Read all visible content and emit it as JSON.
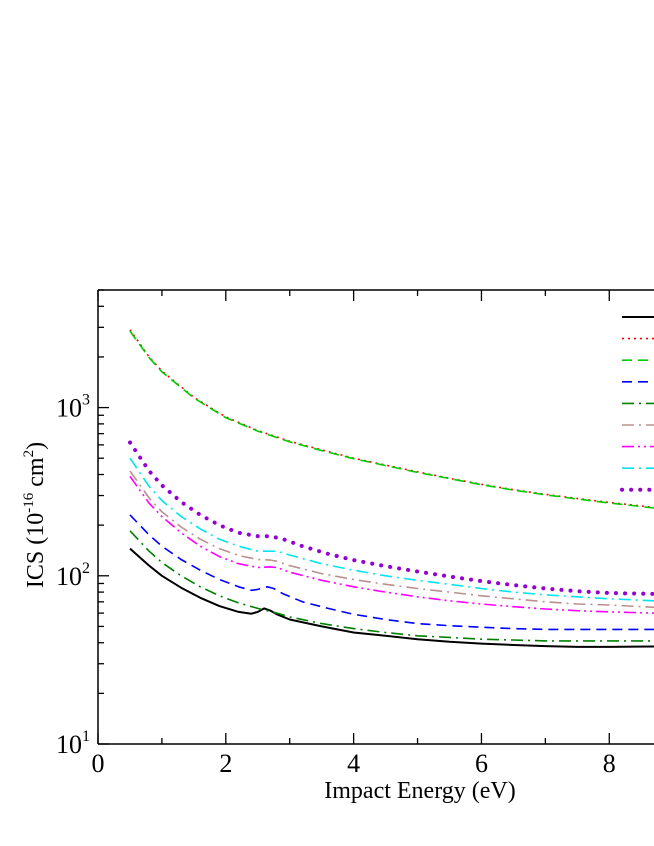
{
  "chart_data": {
    "type": "line",
    "title": "",
    "xlabel": "Impact Energy (eV)",
    "ylabel": {
      "base": "ICS (10",
      "exp": "-16",
      "unit": " cm",
      "unit_exp": "2",
      "close": ")"
    },
    "xlim": [
      0,
      8.7
    ],
    "ylim": [
      10,
      5000
    ],
    "yscale": "log",
    "x_ticks": [
      0,
      2,
      4,
      6,
      8
    ],
    "y_ticks": [
      {
        "value": 10,
        "base": "10",
        "exp": "1"
      },
      {
        "value": 100,
        "base": "10",
        "exp": "2"
      },
      {
        "value": 1000,
        "base": "10",
        "exp": "3"
      }
    ],
    "legend": {
      "position": "top-right"
    },
    "series": [
      {
        "color": "#000000",
        "dash": "solid",
        "width": 2,
        "points": [
          [
            0.5,
            145
          ],
          [
            0.8,
            115
          ],
          [
            1.0,
            100
          ],
          [
            1.3,
            85
          ],
          [
            1.6,
            74
          ],
          [
            1.9,
            66
          ],
          [
            2.2,
            61
          ],
          [
            2.4,
            59.5
          ],
          [
            2.5,
            61
          ],
          [
            2.6,
            64
          ],
          [
            2.7,
            62
          ],
          [
            2.8,
            59
          ],
          [
            3.0,
            55
          ],
          [
            3.5,
            50
          ],
          [
            4.0,
            46
          ],
          [
            4.5,
            44
          ],
          [
            5.0,
            42
          ],
          [
            5.5,
            40.5
          ],
          [
            6.0,
            39.5
          ],
          [
            6.5,
            38.8
          ],
          [
            7.0,
            38.2
          ],
          [
            7.5,
            37.8
          ],
          [
            8.0,
            37.8
          ],
          [
            8.7,
            38
          ]
        ]
      },
      {
        "color": "#ff0000",
        "dash": "dot",
        "width": 1.6,
        "points": [
          [
            0.5,
            2900
          ],
          [
            0.8,
            2000
          ],
          [
            1.0,
            1650
          ],
          [
            1.5,
            1150
          ],
          [
            2.0,
            880
          ],
          [
            2.5,
            730
          ],
          [
            3.0,
            630
          ],
          [
            3.5,
            560
          ],
          [
            4.0,
            500
          ],
          [
            4.5,
            455
          ],
          [
            5.0,
            415
          ],
          [
            5.5,
            380
          ],
          [
            6.0,
            350
          ],
          [
            6.5,
            325
          ],
          [
            7.0,
            305
          ],
          [
            7.5,
            288
          ],
          [
            8.0,
            273
          ],
          [
            8.7,
            255
          ]
        ]
      },
      {
        "color": "#00cc00",
        "dash": "dash",
        "width": 1.6,
        "points": [
          [
            0.5,
            2850
          ],
          [
            0.8,
            1980
          ],
          [
            1.0,
            1630
          ],
          [
            1.5,
            1140
          ],
          [
            2.0,
            870
          ],
          [
            2.5,
            725
          ],
          [
            3.0,
            625
          ],
          [
            3.5,
            555
          ],
          [
            4.0,
            497
          ],
          [
            4.5,
            452
          ],
          [
            5.0,
            412
          ],
          [
            5.5,
            378
          ],
          [
            6.0,
            348
          ],
          [
            6.5,
            323
          ],
          [
            7.0,
            303
          ],
          [
            7.5,
            286
          ],
          [
            8.0,
            271
          ],
          [
            8.7,
            253
          ]
        ]
      },
      {
        "color": "#0000ff",
        "dash": "dash",
        "width": 1.6,
        "points": [
          [
            0.5,
            230
          ],
          [
            0.8,
            175
          ],
          [
            1.0,
            150
          ],
          [
            1.3,
            125
          ],
          [
            1.6,
            108
          ],
          [
            1.9,
            95
          ],
          [
            2.2,
            86
          ],
          [
            2.4,
            82
          ],
          [
            2.5,
            83
          ],
          [
            2.65,
            86
          ],
          [
            2.75,
            84
          ],
          [
            2.9,
            78
          ],
          [
            3.2,
            70
          ],
          [
            3.6,
            64
          ],
          [
            4.0,
            59
          ],
          [
            4.5,
            55
          ],
          [
            5.0,
            52
          ],
          [
            5.5,
            50.5
          ],
          [
            6.0,
            49.5
          ],
          [
            6.5,
            48.5
          ],
          [
            7.0,
            48
          ],
          [
            8.0,
            48
          ],
          [
            8.7,
            48
          ]
        ]
      },
      {
        "color": "#008000",
        "dash": "dashdot",
        "width": 1.6,
        "points": [
          [
            0.5,
            185
          ],
          [
            0.8,
            140
          ],
          [
            1.0,
            120
          ],
          [
            1.3,
            100
          ],
          [
            1.6,
            86
          ],
          [
            1.9,
            76
          ],
          [
            2.2,
            69
          ],
          [
            2.5,
            64
          ],
          [
            2.8,
            60
          ],
          [
            3.0,
            57
          ],
          [
            3.5,
            52
          ],
          [
            4.0,
            48.5
          ],
          [
            4.5,
            46
          ],
          [
            5.0,
            44
          ],
          [
            5.5,
            43
          ],
          [
            6.0,
            42
          ],
          [
            6.5,
            41.5
          ],
          [
            7.0,
            41
          ],
          [
            8.0,
            41
          ],
          [
            8.7,
            41
          ]
        ]
      },
      {
        "color": "#bc8f8f",
        "dash": "dashdot",
        "width": 1.6,
        "points": [
          [
            0.5,
            420
          ],
          [
            0.8,
            290
          ],
          [
            1.0,
            240
          ],
          [
            1.3,
            195
          ],
          [
            1.6,
            165
          ],
          [
            1.9,
            145
          ],
          [
            2.2,
            132
          ],
          [
            2.5,
            125
          ],
          [
            2.7,
            124
          ],
          [
            2.8,
            122
          ],
          [
            3.0,
            115
          ],
          [
            3.5,
            103
          ],
          [
            4.0,
            95
          ],
          [
            4.5,
            89
          ],
          [
            5.0,
            84
          ],
          [
            5.5,
            80
          ],
          [
            6.0,
            76
          ],
          [
            6.5,
            73
          ],
          [
            7.0,
            70
          ],
          [
            7.5,
            68
          ],
          [
            8.0,
            67
          ],
          [
            8.7,
            65
          ]
        ]
      },
      {
        "color": "#ff00ff",
        "dash": "dashdotdot",
        "width": 1.6,
        "points": [
          [
            0.5,
            390
          ],
          [
            0.8,
            270
          ],
          [
            1.0,
            225
          ],
          [
            1.3,
            180
          ],
          [
            1.6,
            150
          ],
          [
            1.9,
            130
          ],
          [
            2.2,
            118
          ],
          [
            2.5,
            112
          ],
          [
            2.7,
            113
          ],
          [
            2.8,
            112
          ],
          [
            3.0,
            105
          ],
          [
            3.5,
            94
          ],
          [
            4.0,
            86
          ],
          [
            4.5,
            80
          ],
          [
            5.0,
            75
          ],
          [
            5.5,
            71
          ],
          [
            6.0,
            68
          ],
          [
            6.5,
            65.5
          ],
          [
            7.0,
            63.5
          ],
          [
            7.5,
            62
          ],
          [
            8.0,
            61
          ],
          [
            8.7,
            60
          ]
        ]
      },
      {
        "color": "#00e5ee",
        "dash": "dashdot",
        "width": 1.6,
        "points": [
          [
            0.5,
            500
          ],
          [
            0.8,
            340
          ],
          [
            1.0,
            280
          ],
          [
            1.3,
            225
          ],
          [
            1.6,
            190
          ],
          [
            1.9,
            165
          ],
          [
            2.2,
            150
          ],
          [
            2.5,
            140
          ],
          [
            2.7,
            140
          ],
          [
            2.8,
            140
          ],
          [
            3.0,
            133
          ],
          [
            3.5,
            118
          ],
          [
            4.0,
            108
          ],
          [
            4.5,
            100
          ],
          [
            5.0,
            94
          ],
          [
            5.5,
            89
          ],
          [
            6.0,
            84
          ],
          [
            6.5,
            80
          ],
          [
            7.0,
            77
          ],
          [
            7.5,
            75
          ],
          [
            8.0,
            73
          ],
          [
            8.7,
            71
          ]
        ]
      },
      {
        "color": "#9400d3",
        "dash": "bigdot",
        "width": 4,
        "points": [
          [
            0.5,
            620
          ],
          [
            0.8,
            420
          ],
          [
            1.0,
            345
          ],
          [
            1.3,
            275
          ],
          [
            1.6,
            230
          ],
          [
            1.9,
            200
          ],
          [
            2.2,
            180
          ],
          [
            2.5,
            172
          ],
          [
            2.7,
            172
          ],
          [
            2.9,
            165
          ],
          [
            3.2,
            150
          ],
          [
            3.6,
            135
          ],
          [
            4.0,
            124
          ],
          [
            4.5,
            114
          ],
          [
            5.0,
            106
          ],
          [
            5.5,
            99
          ],
          [
            6.0,
            93
          ],
          [
            6.5,
            88
          ],
          [
            7.0,
            84
          ],
          [
            7.5,
            81
          ],
          [
            8.0,
            79
          ],
          [
            8.7,
            78
          ]
        ]
      }
    ]
  }
}
